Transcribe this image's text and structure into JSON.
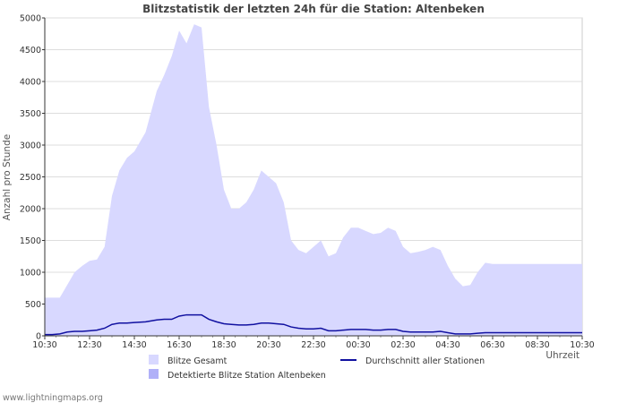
{
  "chart_data": {
    "type": "area",
    "title": "Blitzstatistik der letzten 24h für die Station: Altenbeken",
    "xlabel": "Uhrzeit",
    "ylabel": "Anzahl pro Stunde",
    "ylim": [
      0,
      5000
    ],
    "yticks": [
      0,
      500,
      1000,
      1500,
      2000,
      2500,
      3000,
      3500,
      4000,
      4500,
      5000
    ],
    "xticks": [
      "10:30",
      "12:30",
      "14:30",
      "16:30",
      "18:30",
      "20:30",
      "22:30",
      "00:30",
      "02:30",
      "04:30",
      "06:30",
      "08:30",
      "10:30"
    ],
    "x_hours": [
      0,
      0.33,
      0.67,
      1,
      1.33,
      1.67,
      2,
      2.33,
      2.67,
      3,
      3.33,
      3.67,
      4,
      4.5,
      5,
      5.33,
      5.67,
      6,
      6.33,
      6.67,
      7,
      7.33,
      7.67,
      8,
      8.33,
      8.67,
      9,
      9.33,
      9.67,
      10,
      10.33,
      10.67,
      11,
      11.33,
      11.67,
      12,
      12.33,
      12.67,
      13,
      13.33,
      13.67,
      14,
      14.33,
      14.67,
      15,
      15.33,
      15.67,
      16,
      16.33,
      16.67,
      17,
      17.33,
      17.67,
      18,
      18.33,
      18.67,
      19,
      19.33,
      19.67,
      20,
      20.33,
      20.67,
      21,
      21.33,
      21.67,
      22,
      22.33,
      22.67,
      23,
      23.33,
      23.67,
      24
    ],
    "series": [
      {
        "name": "Blitze Gesamt",
        "color": "#d8d8ff",
        "values": [
          600,
          600,
          600,
          800,
          1000,
          1100,
          1180,
          1200,
          1400,
          2200,
          2600,
          2800,
          2900,
          3200,
          3850,
          4100,
          4400,
          4800,
          4600,
          4900,
          4850,
          3600,
          3000,
          2300,
          2000,
          2000,
          2100,
          2300,
          2600,
          2500,
          2400,
          2100,
          1500,
          1350,
          1300,
          1400,
          1500,
          1250,
          1300,
          1550,
          1700,
          1700,
          1650,
          1600,
          1620,
          1700,
          1650,
          1400,
          1300,
          1320,
          1350,
          1400,
          1350,
          1100,
          900,
          780,
          800,
          1000,
          1150,
          1130,
          1130,
          1130,
          1130,
          1130,
          1130,
          1130,
          1130,
          1130,
          1130,
          1130,
          1130,
          1130
        ],
        "valid_points": 60
      },
      {
        "name": "Detektierte Blitze Station Altenbeken",
        "color": "#b0b0f8",
        "values": [],
        "valid_points": 0
      },
      {
        "name": "Durchschnitt aller Stationen",
        "color": "#1010a0",
        "values": [
          20,
          20,
          30,
          60,
          70,
          70,
          80,
          90,
          120,
          180,
          200,
          200,
          210,
          220,
          250,
          260,
          260,
          310,
          330,
          330,
          330,
          260,
          220,
          190,
          180,
          170,
          170,
          180,
          200,
          200,
          190,
          180,
          140,
          120,
          110,
          110,
          120,
          80,
          80,
          90,
          100,
          100,
          100,
          90,
          90,
          100,
          100,
          70,
          60,
          60,
          60,
          60,
          70,
          50,
          30,
          30,
          30,
          40,
          50,
          50,
          50,
          50,
          50,
          50,
          50,
          50,
          50,
          50,
          50,
          50,
          50,
          50
        ],
        "valid_points": 60
      }
    ],
    "legend_position": "bottom",
    "grid": true
  },
  "footer": {
    "source": "www.lightningmaps.org"
  }
}
